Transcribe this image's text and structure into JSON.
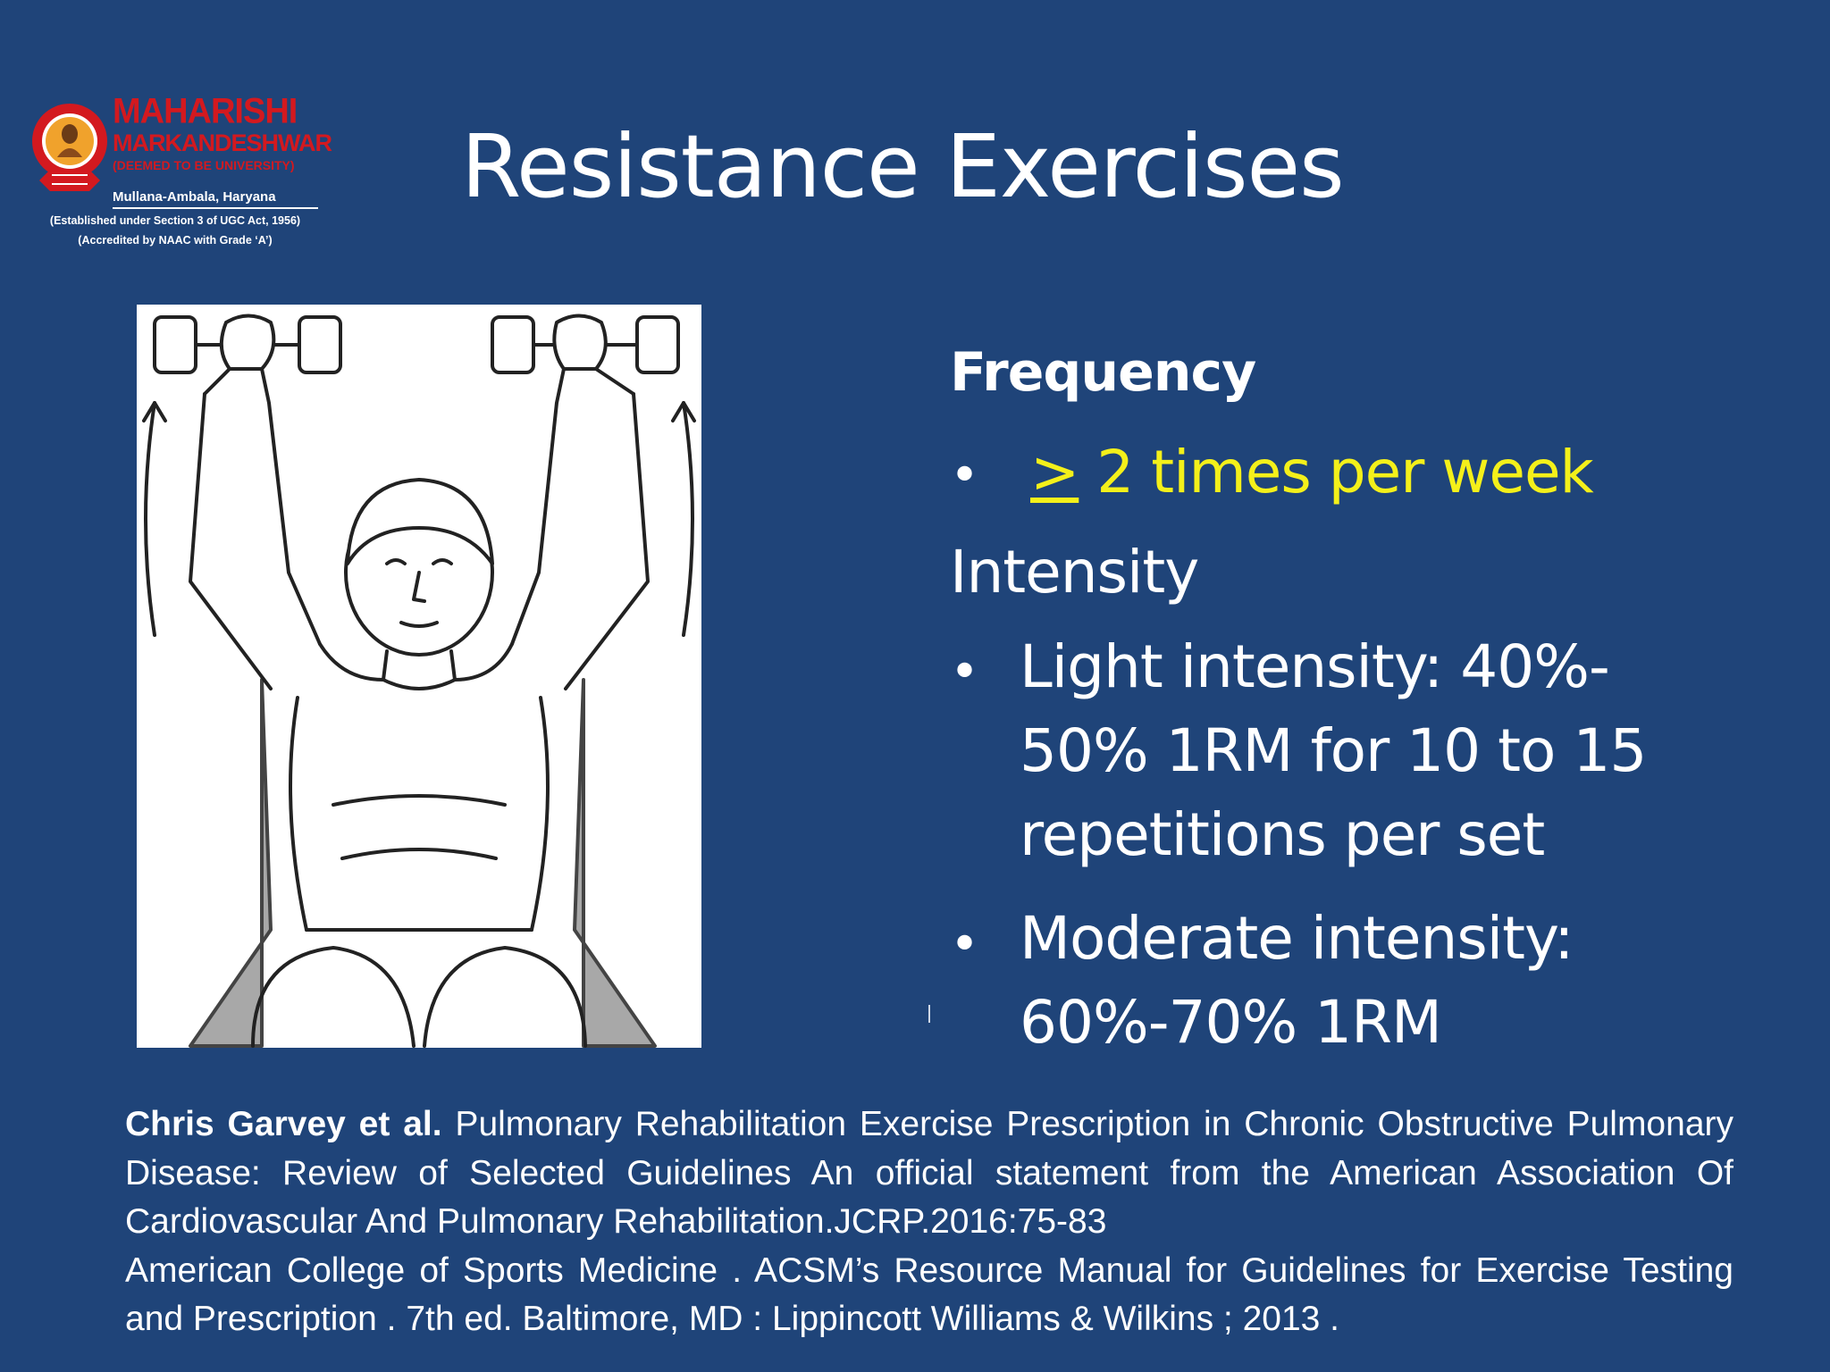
{
  "logo": {
    "name_line1": "MAHARISHI",
    "name_line2": "MARKANDESHWAR",
    "name_line3": "(DEEMED TO BE UNIVERSITY)",
    "location": "Mullana-Ambala, Haryana",
    "established": "(Established under Section 3 of UGC Act, 1956)",
    "accredited": "(Accredited by NAAC with Grade ‘A’)",
    "colors": {
      "red": "#d3191f",
      "orange": "#f0a22c"
    }
  },
  "slide": {
    "title": "Resistance Exercises",
    "background": "#1f4479"
  },
  "content": {
    "frequency_heading": "Frequency",
    "frequency_bullet_symbol": ">",
    "frequency_bullet_text": " 2 times per week",
    "intensity_heading": "Intensity",
    "intensity_bullets": [
      {
        "lines": [
          "Light intensity: 40%-",
          "50% 1RM  for 10 to 15",
          "repetitions per set"
        ]
      },
      {
        "lines": [
          "Moderate intensity:",
          "60%-70% 1RM"
        ]
      }
    ],
    "highlight_color": "#f4f01a"
  },
  "references": {
    "ref1_authors": "Chris Garvey et al.",
    "ref1_text": " Pulmonary Rehabilitation Exercise Prescription in Chronic Obstructive Pulmonary Disease: Review of Selected Guidelines An official statement from the American Association Of Cardiovascular And Pulmonary Rehabilitation.JCRP.2016:75-83",
    "ref2_text": "American College of Sports Medicine . ACSM’s Resource Manual for Guidelines for Exercise Testing and Prescription . 7th ed. Baltimore, MD : Lippincott Williams & Wilkins ; 2013 ."
  },
  "illustration": {
    "icon": "overhead-dumbbell-press-illustration"
  }
}
